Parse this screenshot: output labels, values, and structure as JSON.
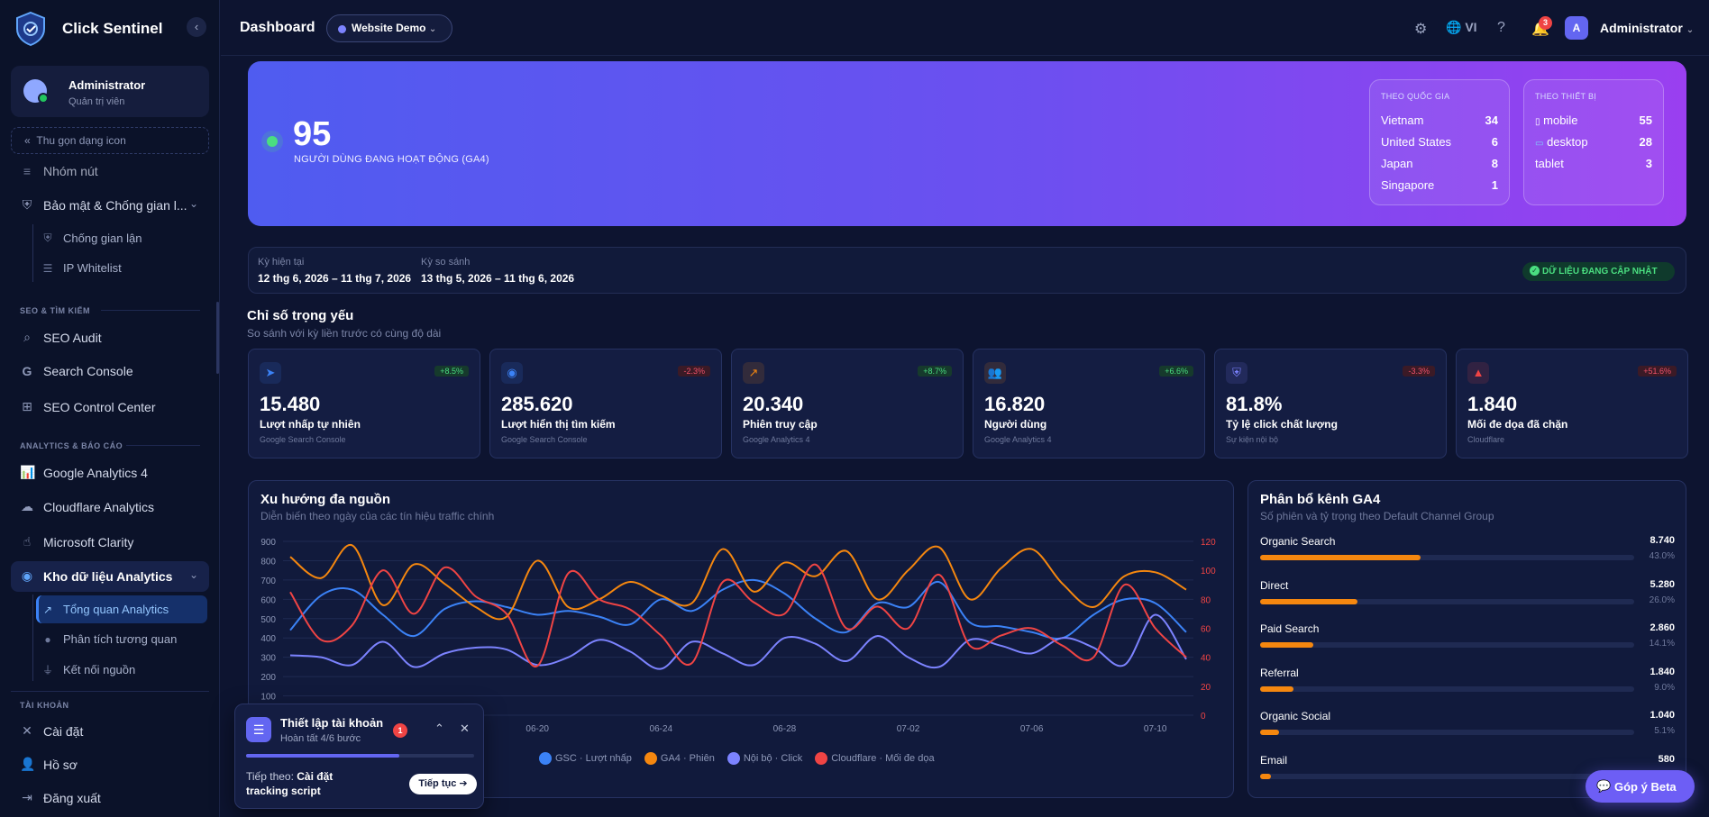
{
  "app": {
    "name": "Click Sentinel"
  },
  "user": {
    "name": "Administrator",
    "role": "Quản trị viên"
  },
  "sidebar": {
    "collapse_label": "Thu gọn dạng icon",
    "items_top": [
      {
        "label": "Nhóm nút",
        "icon": "layers-icon"
      },
      {
        "label": "Bảo mật & Chống gian l...",
        "icon": "shield-icon"
      }
    ],
    "security_sub": [
      {
        "label": "Chống gian lận",
        "icon": "shield-icon"
      },
      {
        "label": "IP Whitelist",
        "icon": "list-icon"
      }
    ],
    "sections": {
      "seo": "SEO & TÌM KIẾM",
      "analytics": "ANALYTICS & BÁO CÁO",
      "account": "TÀI KHOẢN"
    },
    "seo_items": [
      {
        "label": "SEO Audit",
        "icon": "search-icon"
      },
      {
        "label": "Search Console",
        "icon": "google-icon"
      },
      {
        "label": "SEO Control Center",
        "icon": "sitemap-icon"
      }
    ],
    "analytics_items": [
      {
        "label": "Google Analytics 4",
        "icon": "chart-icon"
      },
      {
        "label": "Cloudflare Analytics",
        "icon": "cloud-icon"
      },
      {
        "label": "Microsoft Clarity",
        "icon": "pointer-icon"
      },
      {
        "label": "Kho dữ liệu Analytics",
        "icon": "database-icon"
      }
    ],
    "warehouse_sub": [
      {
        "label": "Tổng quan Analytics",
        "icon": "chart-line-icon"
      },
      {
        "label": "Phân tích tương quan",
        "icon": "bulb-icon"
      },
      {
        "label": "Kết nối nguồn",
        "icon": "plug-icon"
      }
    ],
    "account_items": [
      {
        "label": "Cài đặt",
        "icon": "tools-icon"
      },
      {
        "label": "Hồ sơ",
        "icon": "user-icon"
      },
      {
        "label": "Đăng xuất",
        "icon": "logout-icon"
      }
    ]
  },
  "topbar": {
    "title": "Dashboard",
    "site": "Website Demo",
    "language": "VI",
    "notification_count": "3",
    "avatar_letter": "A",
    "user": "Administrator"
  },
  "hero": {
    "active_users": "95",
    "active_label": "NGƯỜI DÙNG ĐANG HOẠT ĐỘNG (GA4)",
    "by_country": {
      "title": "THEO QUỐC GIA",
      "rows": [
        {
          "name": "Vietnam",
          "value": "34"
        },
        {
          "name": "United States",
          "value": "6"
        },
        {
          "name": "Japan",
          "value": "8"
        },
        {
          "name": "Singapore",
          "value": "1"
        }
      ]
    },
    "by_device": {
      "title": "THEO THIẾT BỊ",
      "rows": [
        {
          "name": "mobile",
          "value": "55",
          "icon": "mobile-icon"
        },
        {
          "name": "desktop",
          "value": "28",
          "icon": "laptop-icon"
        },
        {
          "name": "tablet",
          "value": "3",
          "icon": ""
        }
      ]
    }
  },
  "period": {
    "current_label": "Kỳ hiện tại",
    "current_value": "12 thg 6, 2026 – 11 thg 7, 2026",
    "compare_label": "Kỳ so sánh",
    "compare_value": "13 thg 5, 2026 – 11 thg 6, 2026",
    "status": "DỮ LIỆU ĐANG CẬP NHẬT"
  },
  "kpi_section": {
    "title": "Chỉ số trọng yếu",
    "subtitle": "So sánh với kỳ liền trước có cùng độ dài"
  },
  "kpis": [
    {
      "value": "15.480",
      "label": "Lượt nhấp tự nhiên",
      "source": "Google Search Console",
      "delta": "+8.5%",
      "trend": "up",
      "icon": "cursor-icon",
      "color": "#3b82f6"
    },
    {
      "value": "285.620",
      "label": "Lượt hiển thị tìm kiếm",
      "source": "Google Search Console",
      "delta": "-2.3%",
      "trend": "down",
      "icon": "eye-icon",
      "color": "#3b82f6"
    },
    {
      "value": "20.340",
      "label": "Phiên truy cập",
      "source": "Google Analytics 4",
      "delta": "+8.7%",
      "trend": "up",
      "icon": "chart-line-icon",
      "color": "#f5870f"
    },
    {
      "value": "16.820",
      "label": "Người dùng",
      "source": "Google Analytics 4",
      "delta": "+6.6%",
      "trend": "up",
      "icon": "users-icon",
      "color": "#f5870f"
    },
    {
      "value": "81.8%",
      "label": "Tỷ lệ click chất lượng",
      "source": "Sự kiện nội bộ",
      "delta": "-3.3%",
      "trend": "down",
      "icon": "shield-check-icon",
      "color": "#7c83ff"
    },
    {
      "value": "1.840",
      "label": "Mối đe dọa đã chặn",
      "source": "Cloudflare",
      "delta": "+51.6%",
      "trend": "up-bad",
      "icon": "warning-icon",
      "color": "#ef4444"
    }
  ],
  "trend": {
    "title": "Xu hướng đa nguồn",
    "subtitle": "Diễn biến theo ngày của các tín hiệu traffic chính"
  },
  "chart_data": {
    "type": "line",
    "x": [
      "06-12",
      "06-13",
      "06-14",
      "06-15",
      "06-16",
      "06-17",
      "06-18",
      "06-19",
      "06-20",
      "06-21",
      "06-22",
      "06-23",
      "06-24",
      "06-25",
      "06-26",
      "06-27",
      "06-28",
      "06-29",
      "06-30",
      "07-01",
      "07-02",
      "07-03",
      "07-04",
      "07-05",
      "07-06",
      "07-07",
      "07-08",
      "07-09",
      "07-10",
      "07-11"
    ],
    "xticks": [
      "06-20",
      "06-24",
      "06-28",
      "07-02",
      "07-06",
      "07-10"
    ],
    "y_left": {
      "ticks": [
        "100",
        "200",
        "300",
        "400",
        "500",
        "600",
        "700",
        "800",
        "900"
      ],
      "ylim": [
        0,
        900
      ]
    },
    "y_right": {
      "ticks": [
        "0",
        "20",
        "40",
        "60",
        "80",
        "100",
        "120"
      ],
      "ylim": [
        0,
        120
      ]
    },
    "series": [
      {
        "name": "GSC · Lượt nhấp",
        "axis": "left",
        "color": "#3b82f6",
        "values": [
          440,
          620,
          650,
          520,
          410,
          550,
          590,
          560,
          520,
          540,
          510,
          470,
          600,
          540,
          650,
          700,
          630,
          500,
          430,
          580,
          560,
          690,
          480,
          460,
          430,
          400,
          520,
          600,
          580,
          430
        ]
      },
      {
        "name": "GA4 · Phiên",
        "axis": "left",
        "color": "#f5870f",
        "values": [
          820,
          710,
          880,
          570,
          780,
          680,
          560,
          510,
          800,
          560,
          600,
          690,
          620,
          580,
          860,
          640,
          790,
          720,
          850,
          600,
          750,
          870,
          600,
          760,
          860,
          680,
          560,
          720,
          740,
          650
        ]
      },
      {
        "name": "Nội bộ · Click",
        "axis": "left",
        "color": "#7c83ff",
        "values": [
          310,
          300,
          260,
          380,
          250,
          320,
          350,
          340,
          260,
          300,
          390,
          330,
          240,
          380,
          320,
          260,
          400,
          370,
          280,
          410,
          300,
          250,
          390,
          360,
          320,
          400,
          350,
          260,
          520,
          290
        ]
      },
      {
        "name": "Cloudflare · Mối đe dọa",
        "axis": "right",
        "color": "#ef4444",
        "values": [
          85,
          52,
          62,
          100,
          70,
          102,
          82,
          70,
          34,
          98,
          80,
          73,
          55,
          36,
          92,
          78,
          70,
          104,
          60,
          75,
          60,
          97,
          48,
          55,
          60,
          48,
          40,
          90,
          60,
          40
        ]
      }
    ]
  },
  "channels": {
    "title": "Phân bổ kênh GA4",
    "subtitle": "Số phiên và tỷ trọng theo Default Channel Group",
    "rows": [
      {
        "name": "Organic Search",
        "value": "8.740",
        "pct": "43.0%",
        "share": 43.0
      },
      {
        "name": "Direct",
        "value": "5.280",
        "pct": "26.0%",
        "share": 26.0
      },
      {
        "name": "Paid Search",
        "value": "2.860",
        "pct": "14.1%",
        "share": 14.1
      },
      {
        "name": "Referral",
        "value": "1.840",
        "pct": "9.0%",
        "share": 9.0
      },
      {
        "name": "Organic Social",
        "value": "1.040",
        "pct": "5.1%",
        "share": 5.1
      },
      {
        "name": "Email",
        "value": "580",
        "pct": "",
        "share": 2.9
      }
    ]
  },
  "setup": {
    "title": "Thiết lập tài khoản",
    "subtitle": "Hoàn tất 4/6 bước",
    "badge": "1",
    "progress": 0.67,
    "next_label": "Tiếp theo:",
    "next_step": "Cài đặt tracking script",
    "button": "Tiếp tục"
  },
  "feedback": {
    "label": "Góp ý Beta"
  }
}
